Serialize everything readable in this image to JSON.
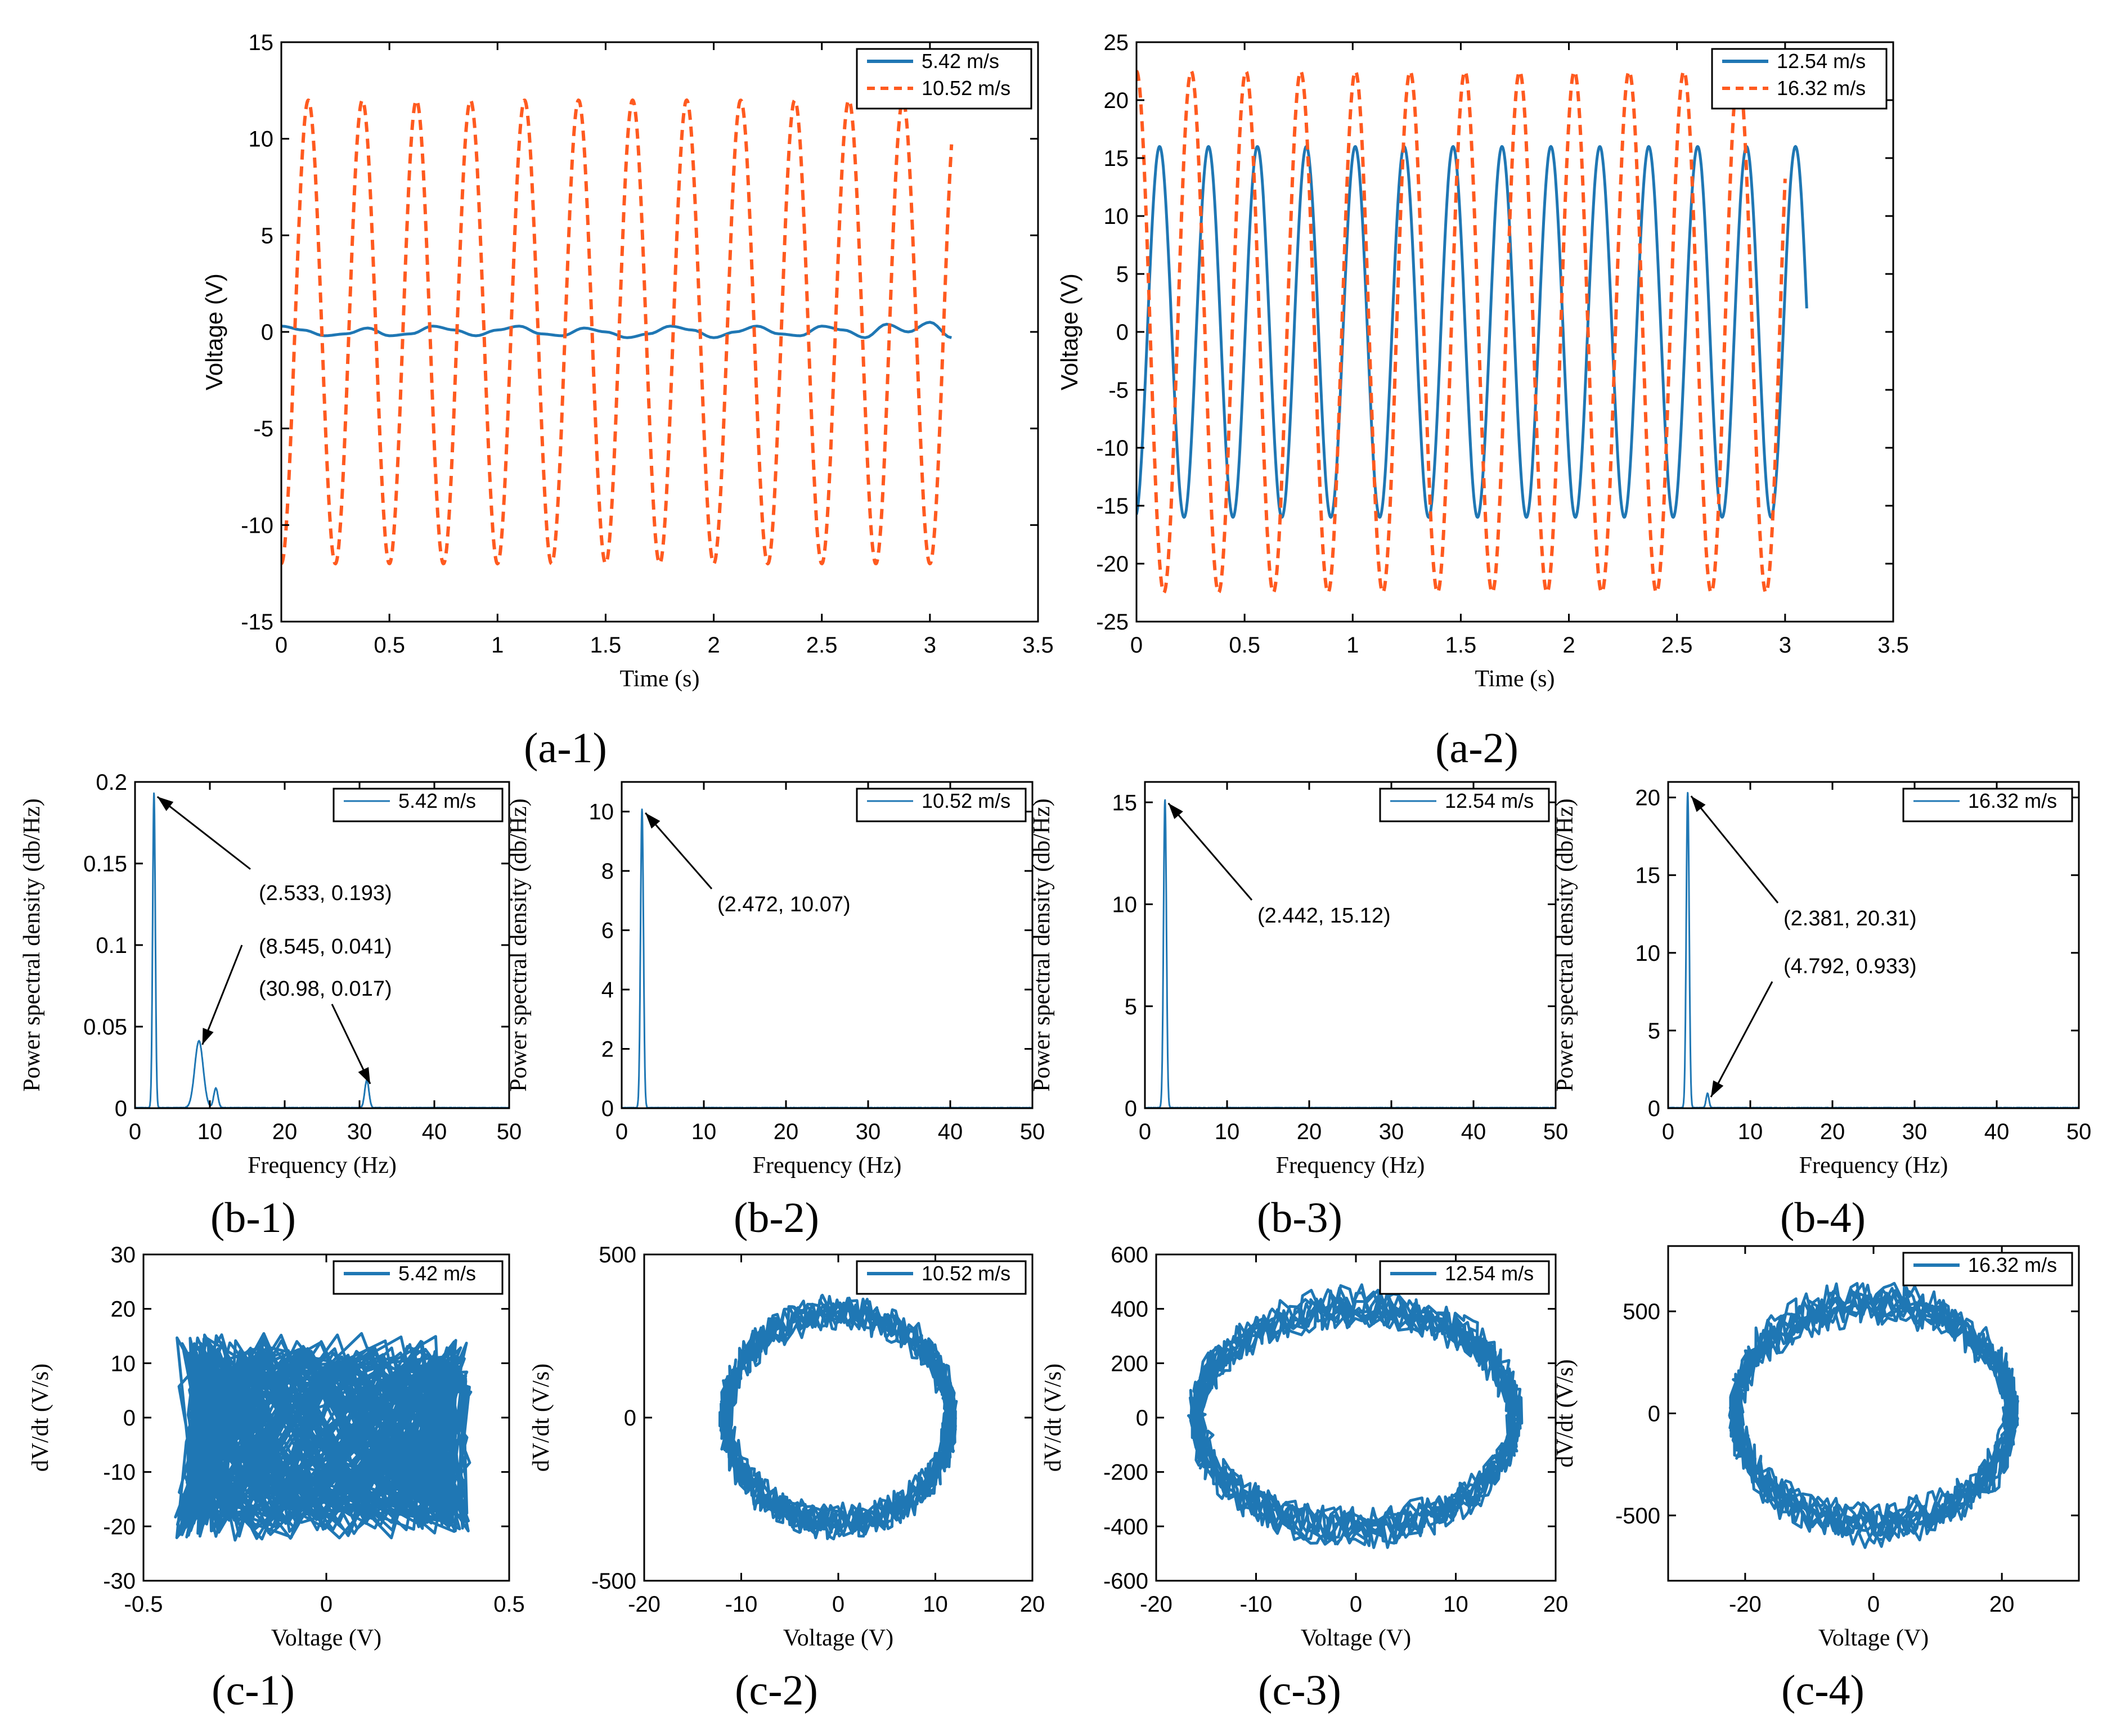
{
  "figure": {
    "colors": {
      "blue": "#1f77b4",
      "orange": "#ff5a1f",
      "axis": "#000000"
    }
  },
  "chart_data": [
    {
      "id": "a1",
      "panel_label": "(a-1)",
      "type": "line",
      "xlabel": "Time (s)",
      "ylabel": "Voltage (V)",
      "xlim": [
        0,
        3.5
      ],
      "ylim": [
        -15,
        15
      ],
      "xticks": [
        0,
        0.5,
        1,
        1.5,
        2,
        2.5,
        3,
        3.5
      ],
      "yticks": [
        -15,
        -10,
        -5,
        0,
        5,
        10,
        15
      ],
      "legend_position": "top-right",
      "series": [
        {
          "name": "5.42 m/s",
          "color": "#1f77b4",
          "style": "solid",
          "x": [
            0,
            0.1,
            0.2,
            0.3,
            0.4,
            0.5,
            0.6,
            0.7,
            0.8,
            0.9,
            1.0,
            1.1,
            1.2,
            1.3,
            1.4,
            1.5,
            1.6,
            1.7,
            1.8,
            1.9,
            2.0,
            2.1,
            2.2,
            2.3,
            2.4,
            2.5,
            2.6,
            2.7,
            2.8,
            2.9,
            3.0,
            3.1
          ],
          "y": [
            0.3,
            0.1,
            -0.2,
            -0.1,
            0.2,
            -0.2,
            -0.1,
            0.3,
            0.1,
            -0.2,
            0.1,
            0.3,
            -0.1,
            -0.2,
            0.2,
            0.0,
            -0.3,
            -0.1,
            0.3,
            0.1,
            -0.3,
            0.0,
            0.3,
            -0.1,
            -0.2,
            0.3,
            0.1,
            -0.3,
            0.4,
            0.0,
            0.5,
            -0.3
          ]
        },
        {
          "name": "10.52 m/s",
          "color": "#ff5a1f",
          "style": "dashed",
          "sine": {
            "amplitude": 12.0,
            "frequency": 4.0,
            "phase_deg": -90,
            "x0": 0,
            "x1": 3.1
          }
        }
      ]
    },
    {
      "id": "a2",
      "panel_label": "(a-2)",
      "type": "line",
      "xlabel": "Time (s)",
      "ylabel": "Voltage (V)",
      "xlim": [
        0,
        3.5
      ],
      "ylim": [
        -25,
        25
      ],
      "xticks": [
        0,
        0.5,
        1,
        1.5,
        2,
        2.5,
        3,
        3.5
      ],
      "yticks": [
        -25,
        -20,
        -15,
        -10,
        -5,
        0,
        5,
        10,
        15,
        20,
        25
      ],
      "legend_position": "top-right",
      "series": [
        {
          "name": "12.54 m/s",
          "color": "#1f77b4",
          "style": "solid",
          "sine": {
            "amplitude": 16.0,
            "frequency": 4.42,
            "phase_deg": -80,
            "x0": 0,
            "x1": 3.1
          }
        },
        {
          "name": "16.32 m/s",
          "color": "#ff5a1f",
          "style": "dashed",
          "sine": {
            "amplitude": 22.5,
            "frequency": 3.95,
            "phase_deg": 90,
            "x0": 0,
            "x1": 3.0
          }
        }
      ]
    },
    {
      "id": "b1",
      "panel_label": "(b-1)",
      "type": "line",
      "xlabel": "Frequency (Hz)",
      "ylabel": "Power spectral density (db/Hz)",
      "xlim": [
        0,
        50
      ],
      "ylim": [
        0,
        0.2
      ],
      "xticks": [
        0,
        10,
        20,
        30,
        40,
        50
      ],
      "yticks": [
        0,
        0.05,
        0.1,
        0.15,
        0.2
      ],
      "legend_position": "top-right",
      "series": [
        {
          "name": "5.42 m/s",
          "color": "#1f77b4",
          "style": "solid",
          "peaks": [
            {
              "x": 2.533,
              "y": 0.193,
              "w": 0.25
            },
            {
              "x": 8.545,
              "y": 0.041,
              "w": 0.8
            },
            {
              "x": 10.8,
              "y": 0.012,
              "w": 0.4
            },
            {
              "x": 30.98,
              "y": 0.017,
              "w": 0.4
            }
          ]
        }
      ],
      "annotations": [
        {
          "text": "(2.533, 0.193)",
          "x": 2.533,
          "y": 0.193
        },
        {
          "text": "(8.545, 0.041)",
          "x": 8.545,
          "y": 0.041
        },
        {
          "text": "(30.98, 0.017)",
          "x": 30.98,
          "y": 0.017
        }
      ]
    },
    {
      "id": "b2",
      "panel_label": "(b-2)",
      "type": "line",
      "xlabel": "Frequency (Hz)",
      "ylabel": "Power spectral density (db/Hz)",
      "xlim": [
        0,
        50
      ],
      "ylim": [
        0,
        11
      ],
      "xticks": [
        0,
        10,
        20,
        30,
        40,
        50
      ],
      "yticks": [
        0,
        2,
        4,
        6,
        8,
        10
      ],
      "legend_position": "top-right",
      "series": [
        {
          "name": "10.52 m/s",
          "color": "#1f77b4",
          "style": "solid",
          "peaks": [
            {
              "x": 2.472,
              "y": 10.07,
              "w": 0.25
            }
          ]
        }
      ],
      "annotations": [
        {
          "text": "(2.472, 10.07)",
          "x": 2.472,
          "y": 10.07
        }
      ]
    },
    {
      "id": "b3",
      "panel_label": "(b-3)",
      "type": "line",
      "xlabel": "Frequency (Hz)",
      "ylabel": "Power spectral density (db/Hz)",
      "xlim": [
        0,
        50
      ],
      "ylim": [
        0,
        16
      ],
      "xticks": [
        0,
        10,
        20,
        30,
        40,
        50
      ],
      "yticks": [
        0,
        5,
        10,
        15
      ],
      "legend_position": "top-right",
      "series": [
        {
          "name": "12.54 m/s",
          "color": "#1f77b4",
          "style": "solid",
          "peaks": [
            {
              "x": 2.442,
              "y": 15.12,
              "w": 0.25
            }
          ]
        }
      ],
      "annotations": [
        {
          "text": "(2.442, 15.12)",
          "x": 2.442,
          "y": 15.12
        }
      ]
    },
    {
      "id": "b4",
      "panel_label": "(b-4)",
      "type": "line",
      "xlabel": "Frequency (Hz)",
      "ylabel": "Power spectral density (db/Hz)",
      "xlim": [
        0,
        50
      ],
      "ylim": [
        0,
        21
      ],
      "xticks": [
        0,
        10,
        20,
        30,
        40,
        50
      ],
      "yticks": [
        0,
        5,
        10,
        15,
        20
      ],
      "legend_position": "top-right",
      "series": [
        {
          "name": "16.32 m/s",
          "color": "#1f77b4",
          "style": "solid",
          "peaks": [
            {
              "x": 2.381,
              "y": 20.31,
              "w": 0.25
            },
            {
              "x": 4.792,
              "y": 0.933,
              "w": 0.25
            }
          ]
        }
      ],
      "annotations": [
        {
          "text": "(2.381, 20.31)",
          "x": 2.381,
          "y": 20.31
        },
        {
          "text": "(4.792, 0.933)",
          "x": 4.792,
          "y": 0.933
        }
      ]
    },
    {
      "id": "c1",
      "panel_label": "(c-1)",
      "type": "line",
      "xlabel": "Voltage (V)",
      "ylabel": "dV/dt (V/s)",
      "xlim": [
        -0.5,
        0.5
      ],
      "ylim": [
        -30,
        30
      ],
      "xticks": [
        -0.5,
        0,
        0.5
      ],
      "yticks": [
        -30,
        -20,
        -10,
        0,
        10,
        20,
        30
      ],
      "legend_position": "top-right",
      "series": [
        {
          "name": "5.42 m/s",
          "color": "#1f77b4",
          "style": "solid",
          "noise_cloud": {
            "x_range": [
              -0.42,
              0.4
            ],
            "y_range": [
              -29,
              22
            ]
          }
        }
      ]
    },
    {
      "id": "c2",
      "panel_label": "(c-2)",
      "type": "line",
      "xlabel": "Voltage (V)",
      "ylabel": "dV/dt (V/s)",
      "xlim": [
        -20,
        20
      ],
      "ylim": [
        -500,
        500
      ],
      "xticks": [
        -20,
        -10,
        0,
        10,
        20
      ],
      "yticks": [
        -500,
        0,
        500
      ],
      "legend_position": "top-right",
      "series": [
        {
          "name": "10.52 m/s",
          "color": "#1f77b4",
          "style": "solid",
          "ellipse": {
            "rx": 11.8,
            "ry": 320
          }
        }
      ]
    },
    {
      "id": "c3",
      "panel_label": "(c-3)",
      "type": "line",
      "xlabel": "Voltage (V)",
      "ylabel": "dV/dt (V/s)",
      "xlim": [
        -20,
        20
      ],
      "ylim": [
        -600,
        600
      ],
      "xticks": [
        -20,
        -10,
        0,
        10,
        20
      ],
      "yticks": [
        -600,
        -400,
        -200,
        0,
        200,
        400,
        600
      ],
      "legend_position": "top-right",
      "series": [
        {
          "name": "12.54 m/s",
          "color": "#1f77b4",
          "style": "solid",
          "ellipse": {
            "rx": 16.3,
            "ry": 420
          }
        }
      ]
    },
    {
      "id": "c4",
      "panel_label": "(c-4)",
      "type": "line",
      "xlabel": "Voltage (V)",
      "ylabel": "dV/dt (V/s)",
      "xlim": [
        -32,
        32
      ],
      "ylim": [
        -820,
        820
      ],
      "xticks": [
        -20,
        0,
        20
      ],
      "yticks": [
        -500,
        0,
        500
      ],
      "legend_position": "top-right",
      "series": [
        {
          "name": "16.32 m/s",
          "color": "#1f77b4",
          "style": "solid",
          "ellipse": {
            "rx": 21.8,
            "ry": 560
          }
        }
      ]
    }
  ]
}
